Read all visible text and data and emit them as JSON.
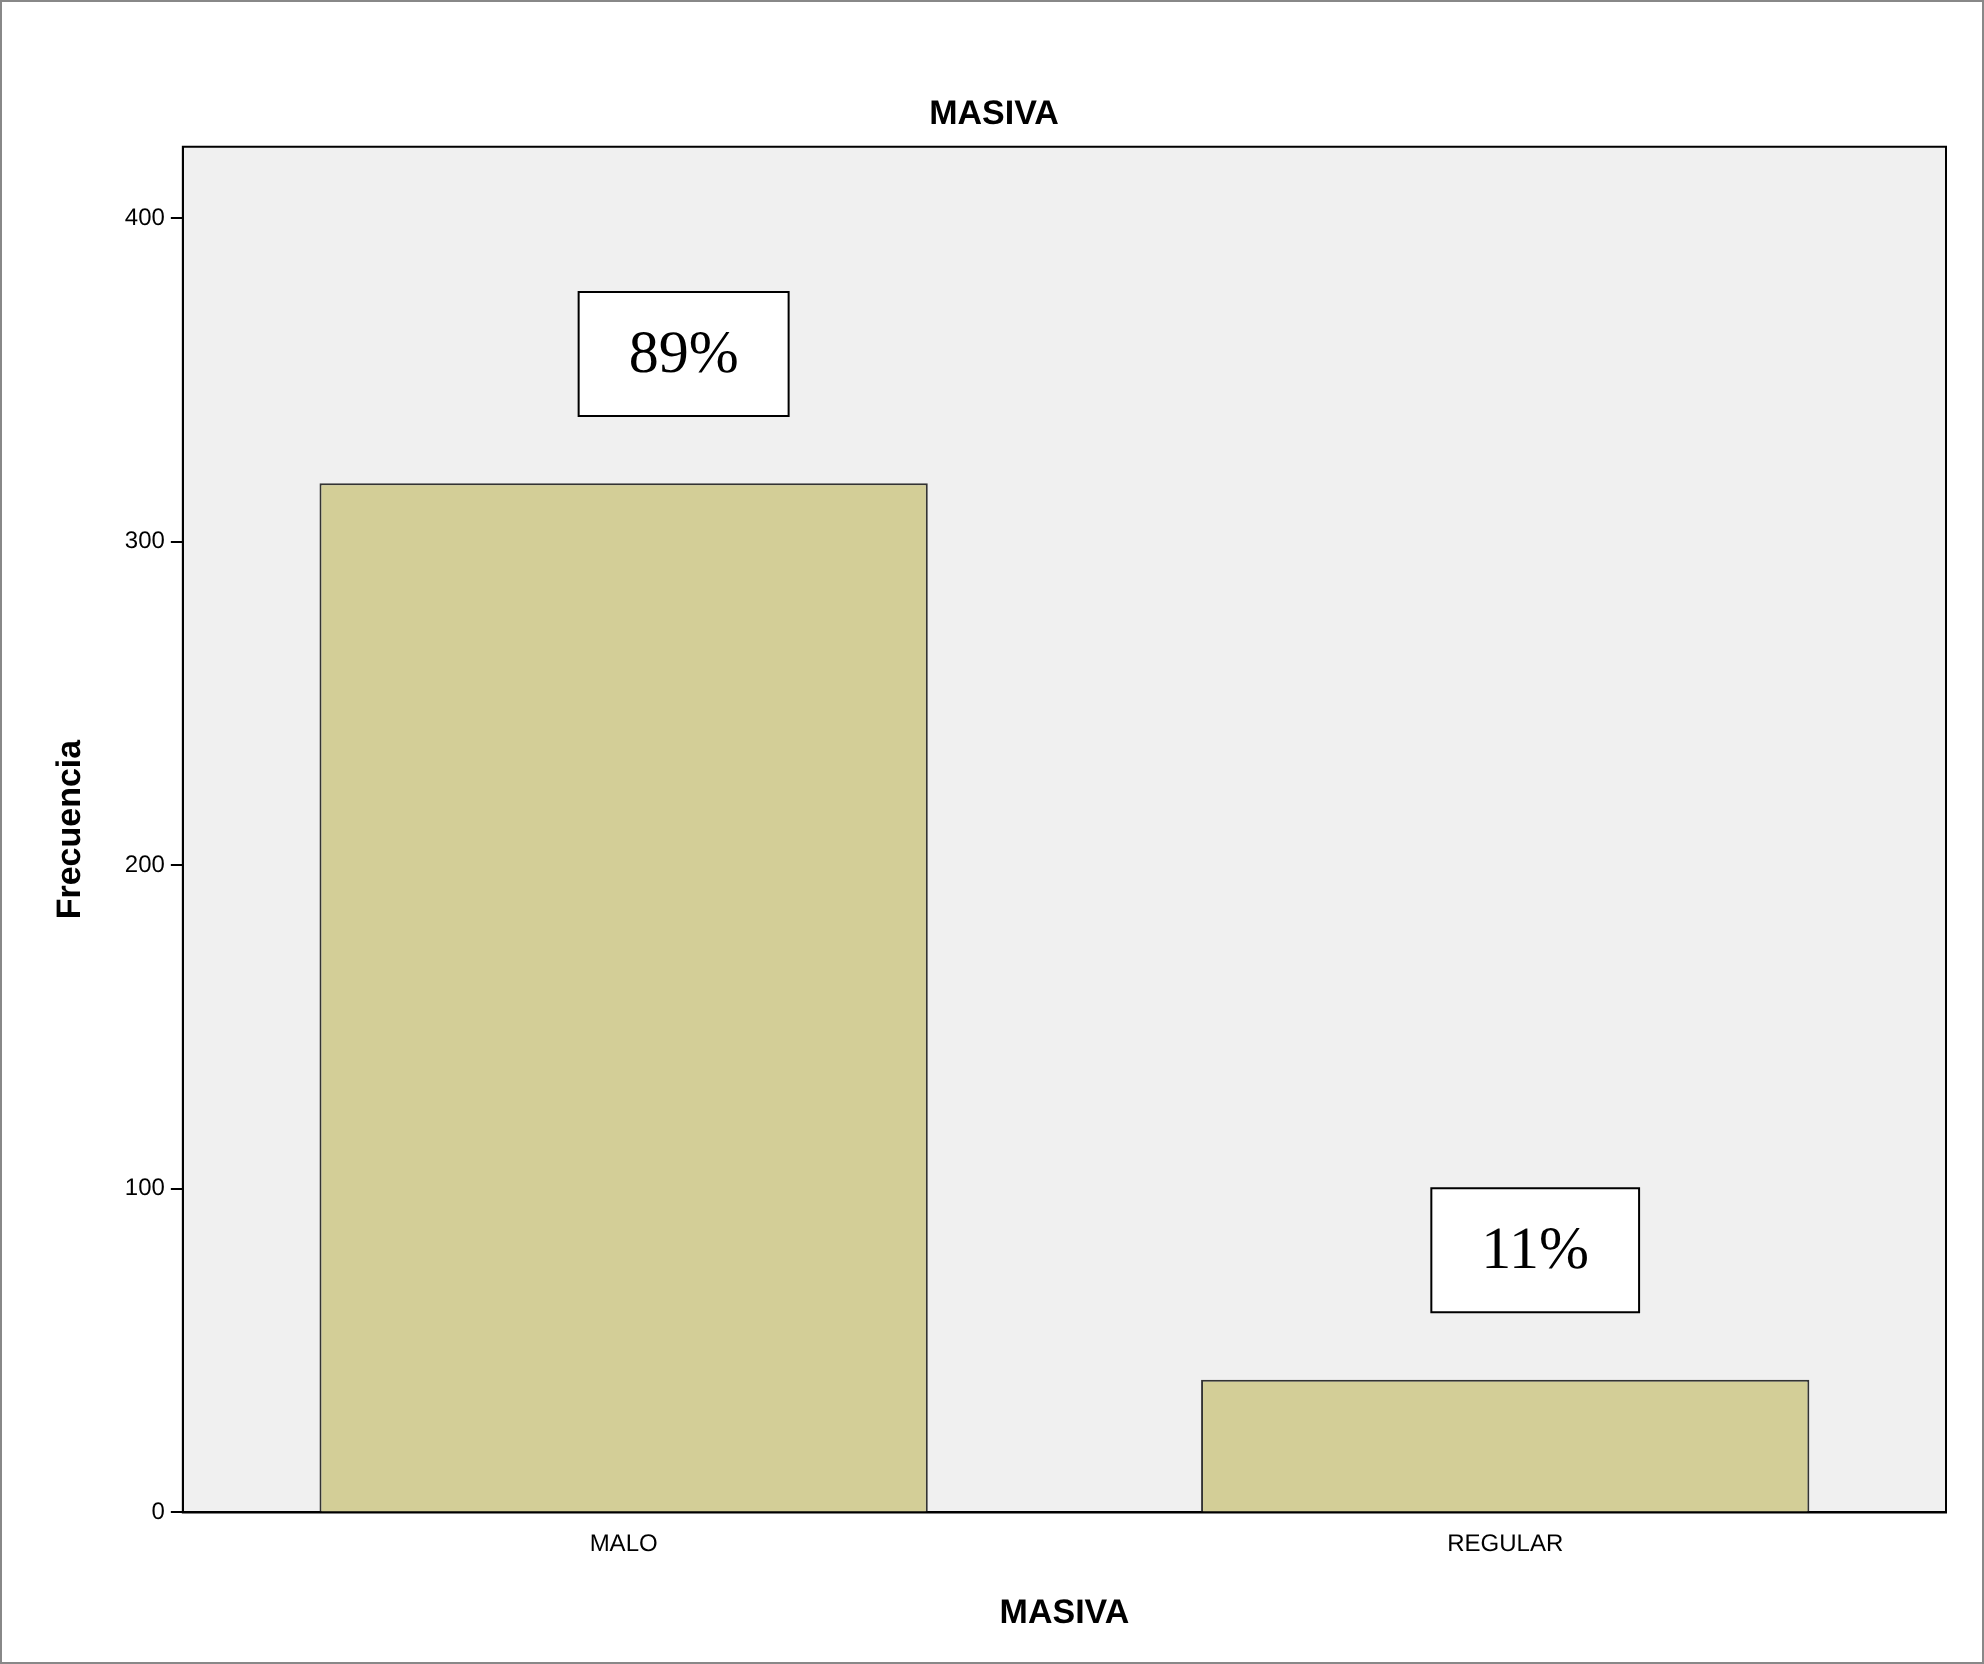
{
  "chart_data": {
    "type": "bar",
    "title": "MASIVA",
    "xlabel": "MASIVA",
    "ylabel": "Frecuencia",
    "categories": [
      "MALO",
      "REGULAR"
    ],
    "values": [
      318,
      41
    ],
    "color": "#d3ce97",
    "ylim": [
      0,
      422
    ],
    "yticks": [
      0,
      100,
      200,
      300,
      400
    ],
    "grid": false,
    "annotations": [
      "89%",
      "11%"
    ]
  }
}
